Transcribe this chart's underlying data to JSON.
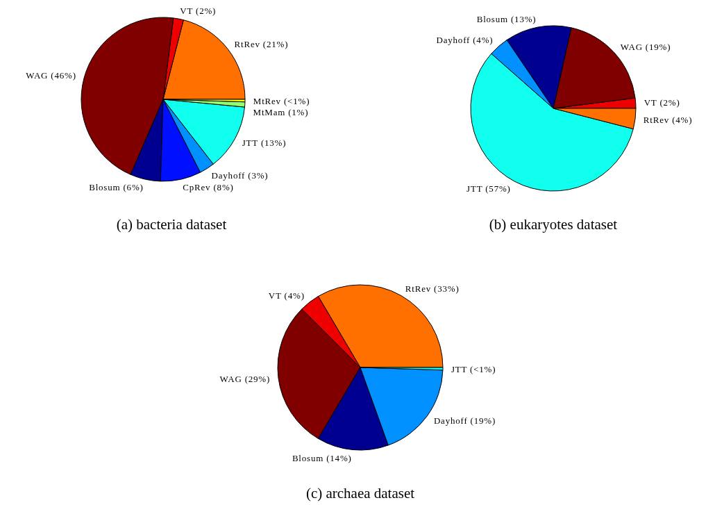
{
  "chart_data": [
    {
      "type": "pie",
      "title": "(a) bacteria dataset",
      "categories": [
        "RtRev (21%)",
        "VT (2%)",
        "WAG (46%)",
        "Blosum (6%)",
        "CpRev (8%)",
        "Dayhoff (3%)",
        "JTT (13%)",
        "MtMam (1%)",
        "MtRev (<1%)"
      ],
      "values": [
        21,
        2,
        45.5,
        6,
        8,
        3,
        13,
        1,
        0.5
      ],
      "colors": [
        "#ff7000",
        "#ee0000",
        "#800000",
        "#000090",
        "#0010ff",
        "#0090ff",
        "#10ffef",
        "#90ff70",
        "#ffff00"
      ]
    },
    {
      "type": "pie",
      "title": "(b) eukaryotes dataset",
      "categories": [
        "VT (2%)",
        "WAG (19%)",
        "Blosum (13%)",
        "Dayhoff (4%)",
        "JTT (57%)",
        "RtRev (4%)"
      ],
      "values": [
        2,
        19.5,
        13,
        4,
        57.5,
        4
      ],
      "colors": [
        "#ee0000",
        "#800000",
        "#000090",
        "#0090ff",
        "#10ffef",
        "#ff7000"
      ]
    },
    {
      "type": "pie",
      "title": "(c) archaea dataset",
      "categories": [
        "RtRev (33%)",
        "VT (4%)",
        "WAG (29%)",
        "Blosum (14%)",
        "Dayhoff (19%)",
        "JTT (<1%)"
      ],
      "values": [
        33.5,
        4,
        29,
        14,
        19,
        0.5
      ],
      "colors": [
        "#ff7000",
        "#ee0000",
        "#800000",
        "#000090",
        "#0090ff",
        "#10ffef"
      ]
    }
  ]
}
